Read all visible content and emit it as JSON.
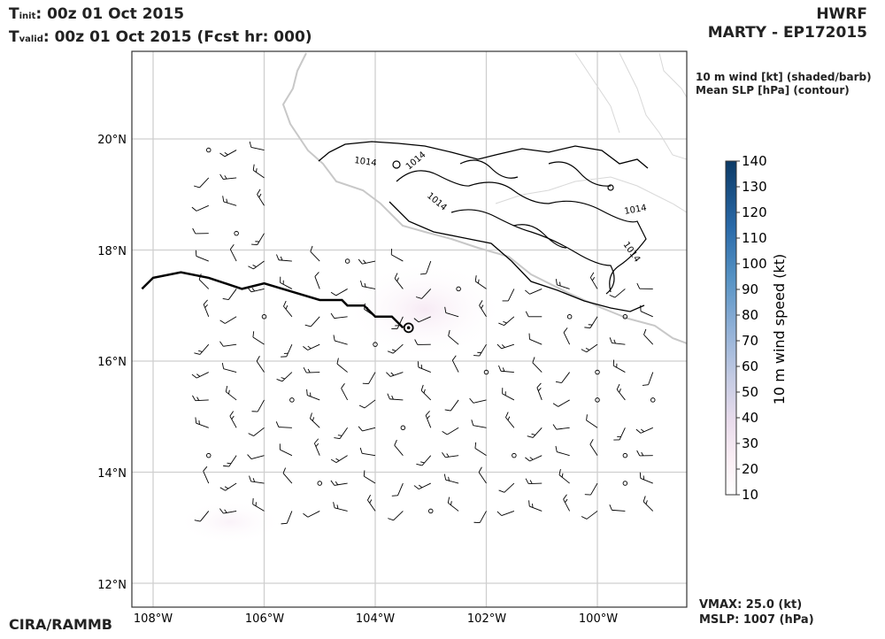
{
  "header": {
    "tinit_sub": "init",
    "tinit_value": ":  00z 01 Oct 2015",
    "tvalid_sub": "valid",
    "tvalid_value": ": 00z 01 Oct 2015 (Fcst hr: 000)",
    "model": "HWRF",
    "storm": "MARTY - EP172015"
  },
  "legend": {
    "line1": "10 m wind [kt] (shaded/barb)",
    "line2": "Mean SLP [hPa] (contour)"
  },
  "colorbar": {
    "label": "10 m wind speed (kt)",
    "ticks": [
      "140",
      "130",
      "120",
      "110",
      "100",
      "90",
      "80",
      "70",
      "60",
      "50",
      "40",
      "30",
      "20",
      "10"
    ],
    "min": 10,
    "max": 140,
    "colors": [
      "#ffffff",
      "#fff6f8",
      "#f3e6f0",
      "#dcd3e8",
      "#bcc6e0",
      "#98b3d6",
      "#6f9ccb",
      "#4d86be",
      "#3472b0",
      "#1f5f9f",
      "#134f8c",
      "#0d3f74",
      "#082f5c",
      "#052245"
    ]
  },
  "map": {
    "lat_labels": [
      "20°N",
      "18°N",
      "16°N",
      "14°N",
      "12°N"
    ],
    "lon_labels": [
      "108°W",
      "106°W",
      "104°W",
      "102°W",
      "100°W"
    ],
    "contour_labels": [
      "1014",
      "1014",
      "1014",
      "1014",
      "1014"
    ],
    "track": [
      {
        "lon": -108.2,
        "lat": 17.3
      },
      {
        "lon": -108.0,
        "lat": 17.5
      },
      {
        "lon": -107.5,
        "lat": 17.6
      },
      {
        "lon": -107.0,
        "lat": 17.5
      },
      {
        "lon": -106.4,
        "lat": 17.3
      },
      {
        "lon": -106.0,
        "lat": 17.4
      },
      {
        "lon": -105.5,
        "lat": 17.25
      },
      {
        "lon": -105.0,
        "lat": 17.1
      },
      {
        "lon": -104.6,
        "lat": 17.1
      },
      {
        "lon": -104.5,
        "lat": 17.0
      },
      {
        "lon": -104.2,
        "lat": 17.0
      },
      {
        "lon": -104.0,
        "lat": 16.8
      },
      {
        "lon": -103.7,
        "lat": 16.8
      },
      {
        "lon": -103.5,
        "lat": 16.6
      }
    ],
    "storm_center": {
      "lon": -103.4,
      "lat": 16.6
    }
  },
  "footer": {
    "vmax": "VMAX:  25.0 (kt)",
    "mslp": "MSLP: 1007 (hPa)",
    "credit": "CIRA/RAMMB"
  }
}
